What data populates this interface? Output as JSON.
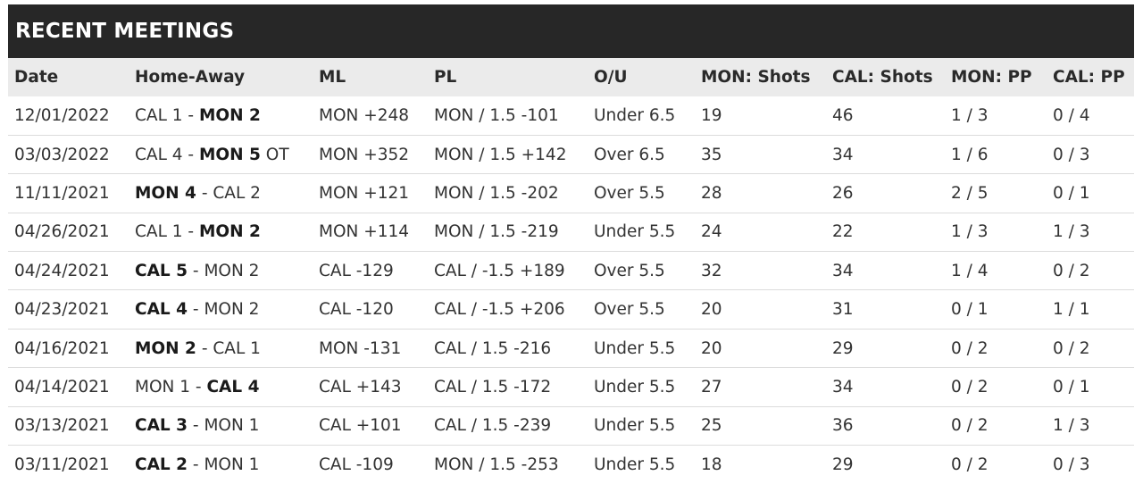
{
  "title": "RECENT MEETINGS",
  "columns": [
    "Date",
    "Home-Away",
    "ML",
    "PL",
    "O/U",
    "MON: Shots",
    "CAL: Shots",
    "MON: PP",
    "CAL: PP"
  ],
  "rows": [
    {
      "date": "12/01/2022",
      "home": {
        "team": "CAL 1",
        "bold": false
      },
      "away": {
        "team": "MON 2",
        "bold": true
      },
      "suffix": "",
      "ml": "MON +248",
      "pl": "MON / 1.5 -101",
      "ou": "Under 6.5",
      "mon_shots": "19",
      "cal_shots": "46",
      "mon_pp": "1 / 3",
      "cal_pp": "0 / 4"
    },
    {
      "date": "03/03/2022",
      "home": {
        "team": "CAL 4",
        "bold": false
      },
      "away": {
        "team": "MON 5",
        "bold": true
      },
      "suffix": "OT",
      "ml": "MON +352",
      "pl": "MON / 1.5 +142",
      "ou": "Over 6.5",
      "mon_shots": "35",
      "cal_shots": "34",
      "mon_pp": "1 / 6",
      "cal_pp": "0 / 3"
    },
    {
      "date": "11/11/2021",
      "home": {
        "team": "MON 4",
        "bold": true
      },
      "away": {
        "team": "CAL 2",
        "bold": false
      },
      "suffix": "",
      "ml": "MON +121",
      "pl": "MON / 1.5 -202",
      "ou": "Over 5.5",
      "mon_shots": "28",
      "cal_shots": "26",
      "mon_pp": "2 / 5",
      "cal_pp": "0 / 1"
    },
    {
      "date": "04/26/2021",
      "home": {
        "team": "CAL 1",
        "bold": false
      },
      "away": {
        "team": "MON 2",
        "bold": true
      },
      "suffix": "",
      "ml": "MON +114",
      "pl": "MON / 1.5 -219",
      "ou": "Under 5.5",
      "mon_shots": "24",
      "cal_shots": "22",
      "mon_pp": "1 / 3",
      "cal_pp": "1 / 3"
    },
    {
      "date": "04/24/2021",
      "home": {
        "team": "CAL 5",
        "bold": true
      },
      "away": {
        "team": "MON 2",
        "bold": false
      },
      "suffix": "",
      "ml": "CAL -129",
      "pl": "CAL / -1.5 +189",
      "ou": "Over 5.5",
      "mon_shots": "32",
      "cal_shots": "34",
      "mon_pp": "1 / 4",
      "cal_pp": "0 / 2"
    },
    {
      "date": "04/23/2021",
      "home": {
        "team": "CAL 4",
        "bold": true
      },
      "away": {
        "team": "MON 2",
        "bold": false
      },
      "suffix": "",
      "ml": "CAL -120",
      "pl": "CAL / -1.5 +206",
      "ou": "Over 5.5",
      "mon_shots": "20",
      "cal_shots": "31",
      "mon_pp": "0 / 1",
      "cal_pp": "1 / 1"
    },
    {
      "date": "04/16/2021",
      "home": {
        "team": "MON 2",
        "bold": true
      },
      "away": {
        "team": "CAL 1",
        "bold": false
      },
      "suffix": "",
      "ml": "MON -131",
      "pl": "CAL / 1.5 -216",
      "ou": "Under 5.5",
      "mon_shots": "20",
      "cal_shots": "29",
      "mon_pp": "0 / 2",
      "cal_pp": "0 / 2"
    },
    {
      "date": "04/14/2021",
      "home": {
        "team": "MON 1",
        "bold": false
      },
      "away": {
        "team": "CAL 4",
        "bold": true
      },
      "suffix": "",
      "ml": "CAL +143",
      "pl": "CAL / 1.5 -172",
      "ou": "Under 5.5",
      "mon_shots": "27",
      "cal_shots": "34",
      "mon_pp": "0 / 2",
      "cal_pp": "0 / 1"
    },
    {
      "date": "03/13/2021",
      "home": {
        "team": "CAL 3",
        "bold": true
      },
      "away": {
        "team": "MON 1",
        "bold": false
      },
      "suffix": "",
      "ml": "CAL +101",
      "pl": "CAL / 1.5 -239",
      "ou": "Under 5.5",
      "mon_shots": "25",
      "cal_shots": "36",
      "mon_pp": "0 / 2",
      "cal_pp": "1 / 3"
    },
    {
      "date": "03/11/2021",
      "home": {
        "team": "CAL 2",
        "bold": true
      },
      "away": {
        "team": "MON 1",
        "bold": false
      },
      "suffix": "",
      "ml": "CAL -109",
      "pl": "MON / 1.5 -253",
      "ou": "Under 5.5",
      "mon_shots": "18",
      "cal_shots": "29",
      "mon_pp": "0 / 2",
      "cal_pp": "0 / 3"
    }
  ]
}
